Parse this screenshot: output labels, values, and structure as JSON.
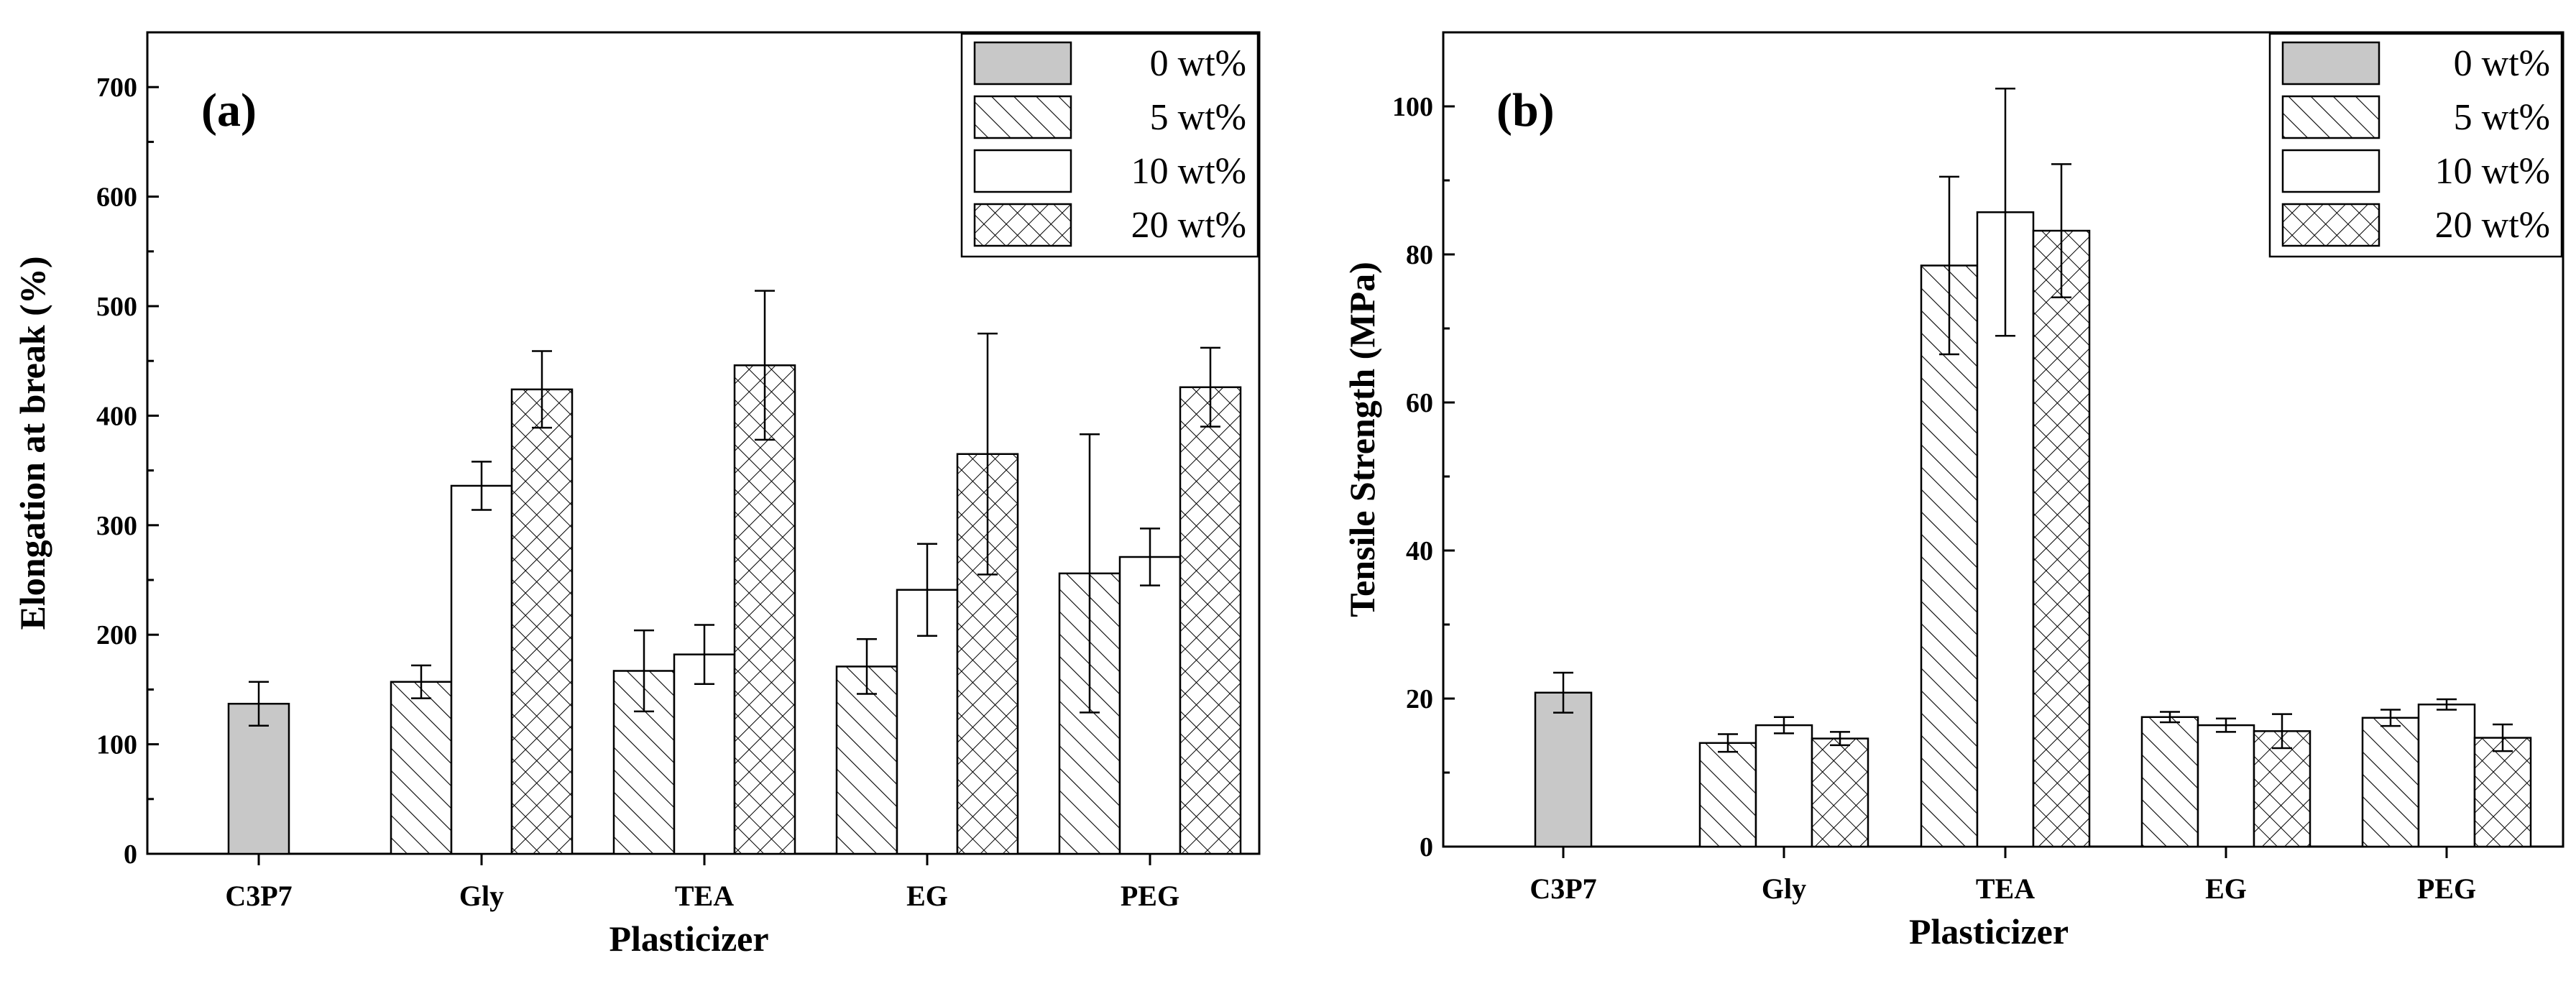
{
  "colors": {
    "gray_fill": "#c8c8c8",
    "line": "#000000",
    "white": "#ffffff"
  },
  "chart_data": [
    {
      "id": "a",
      "type": "bar",
      "panel_label": "(a)",
      "title": "",
      "xlabel": "Plasticizer",
      "ylabel": "Elongation at break (%)",
      "ylim": [
        0,
        750
      ],
      "yticks": [
        0,
        100,
        200,
        300,
        400,
        500,
        600,
        700
      ],
      "categories": [
        "C3P7",
        "Gly",
        "TEA",
        "EG",
        "PEG"
      ],
      "legend_position": "top-right",
      "series": [
        {
          "name": "0 wt%",
          "pattern": "gray",
          "values": [
            137,
            null,
            null,
            null,
            null
          ],
          "errors": [
            20,
            null,
            null,
            null,
            null
          ]
        },
        {
          "name": "5 wt%",
          "pattern": "hatch",
          "values": [
            null,
            157,
            167,
            171,
            256
          ],
          "errors": [
            null,
            15,
            37,
            25,
            127
          ]
        },
        {
          "name": "10 wt%",
          "pattern": "white",
          "values": [
            null,
            336,
            182,
            241,
            271
          ],
          "errors": [
            null,
            22,
            27,
            42,
            26
          ]
        },
        {
          "name": "20 wt%",
          "pattern": "cross",
          "values": [
            null,
            424,
            446,
            365,
            426
          ],
          "errors": [
            null,
            35,
            68,
            110,
            36
          ]
        }
      ]
    },
    {
      "id": "b",
      "type": "bar",
      "panel_label": "(b)",
      "title": "",
      "xlabel": "Plasticizer",
      "ylabel": "Tensile Strength (MPa)",
      "ylim": [
        0,
        110
      ],
      "yticks": [
        0,
        20,
        40,
        60,
        80,
        100
      ],
      "categories": [
        "C3P7",
        "Gly",
        "TEA",
        "EG",
        "PEG"
      ],
      "legend_position": "top-right",
      "series": [
        {
          "name": "0 wt%",
          "pattern": "gray",
          "values": [
            20.8,
            null,
            null,
            null,
            null
          ],
          "errors": [
            2.7,
            null,
            null,
            null,
            null
          ]
        },
        {
          "name": "5 wt%",
          "pattern": "hatch",
          "values": [
            null,
            14.0,
            78.5,
            17.5,
            17.4
          ],
          "errors": [
            null,
            1.2,
            12.0,
            0.7,
            1.1
          ]
        },
        {
          "name": "10 wt%",
          "pattern": "white",
          "values": [
            null,
            16.4,
            85.7,
            16.4,
            19.2
          ],
          "errors": [
            null,
            1.1,
            16.7,
            0.9,
            0.7
          ]
        },
        {
          "name": "20 wt%",
          "pattern": "cross",
          "values": [
            null,
            14.6,
            83.2,
            15.6,
            14.7
          ],
          "errors": [
            null,
            0.9,
            9.0,
            2.3,
            1.8
          ]
        }
      ]
    }
  ]
}
